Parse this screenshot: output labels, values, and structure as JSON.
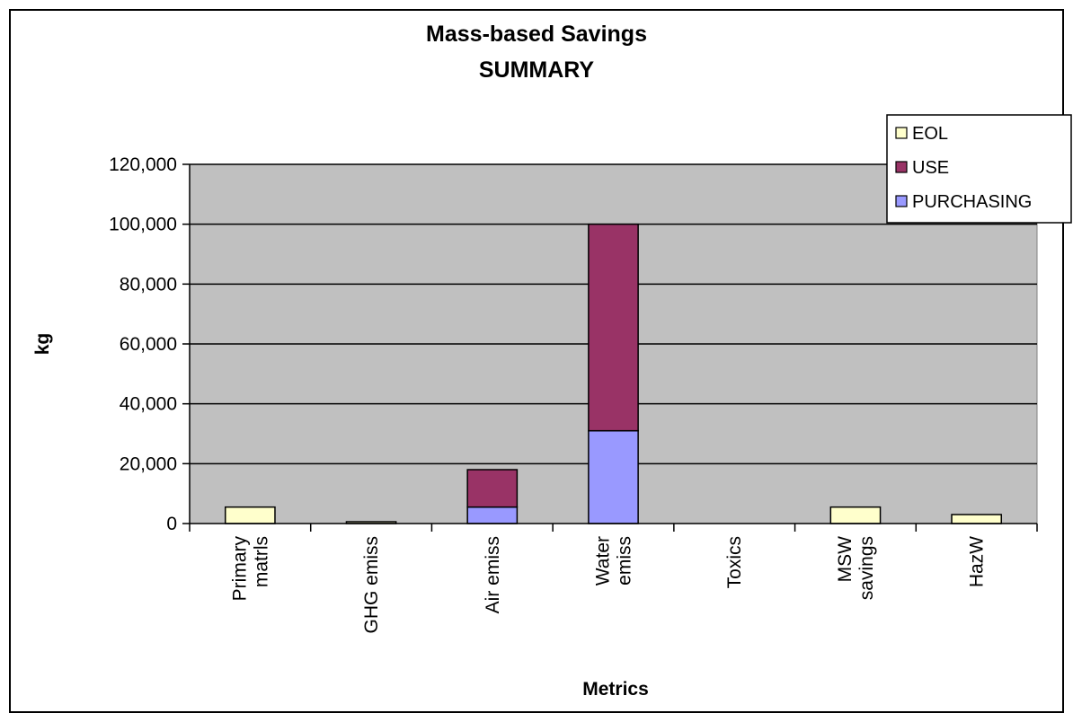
{
  "chart_data": {
    "type": "bar",
    "stacked": true,
    "title": [
      "Mass-based Savings",
      "SUMMARY"
    ],
    "xlabel": "Metrics",
    "ylabel": "kg",
    "ylim": [
      0,
      120000
    ],
    "yticks": [
      0,
      20000,
      40000,
      60000,
      80000,
      100000,
      120000
    ],
    "ytick_labels": [
      "0",
      "20,000",
      "40,000",
      "60,000",
      "80,000",
      "100,000",
      "120,000"
    ],
    "categories": [
      [
        "Primary",
        "matrls"
      ],
      [
        "GHG emiss"
      ],
      [
        "Air emiss"
      ],
      [
        "Water",
        "emiss"
      ],
      [
        "Toxics"
      ],
      [
        "MSW",
        "savings"
      ],
      [
        "HazW"
      ]
    ],
    "series": [
      {
        "name": "PURCHASING",
        "color": "#9999ff",
        "values": [
          0,
          0,
          5500,
          31000,
          0,
          0,
          0
        ]
      },
      {
        "name": "USE",
        "color": "#993366",
        "values": [
          0,
          0,
          12500,
          69000,
          0,
          0,
          0
        ]
      },
      {
        "name": "EOL",
        "color": "#ffffcc",
        "values": [
          5500,
          600,
          0,
          0,
          0,
          5500,
          3000
        ]
      }
    ],
    "legend_order": [
      "EOL",
      "USE",
      "PURCHASING"
    ],
    "legend_position": "top-right",
    "grid": true,
    "plot_background": "#c0c0c0"
  }
}
